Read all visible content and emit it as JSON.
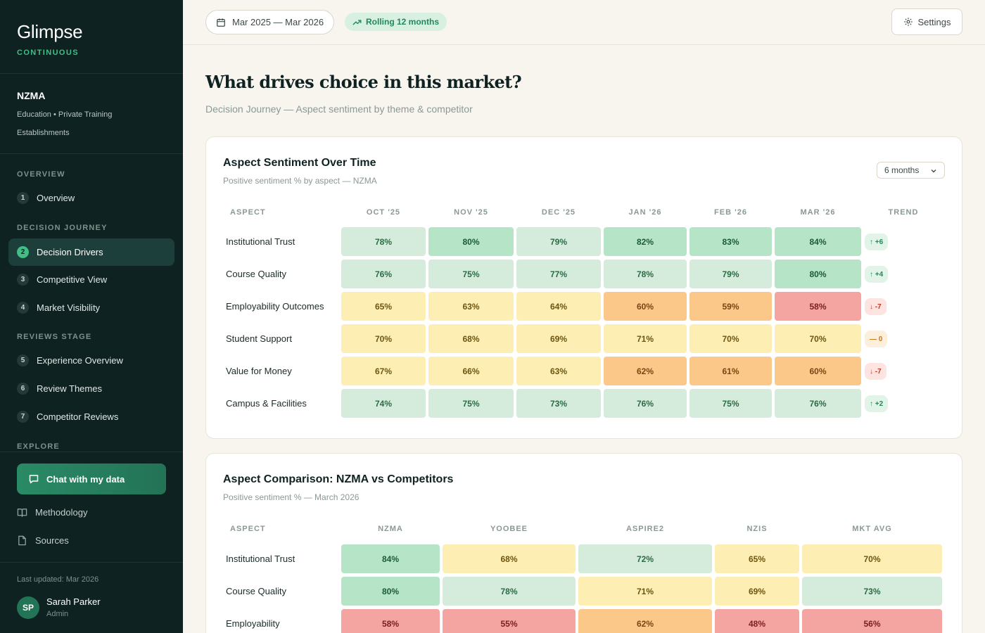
{
  "sidebar": {
    "brand": "Glimpse",
    "brand_sub": "CONTINUOUS",
    "client": {
      "name": "NZMA",
      "description": "Education • Private Training Establishments"
    },
    "sections": [
      {
        "title": "OVERVIEW",
        "items": [
          {
            "num": "1",
            "label": "Overview",
            "active": false
          }
        ]
      },
      {
        "title": "DECISION JOURNEY",
        "items": [
          {
            "num": "2",
            "label": "Decision Drivers",
            "active": true
          },
          {
            "num": "3",
            "label": "Competitive View",
            "active": false
          },
          {
            "num": "4",
            "label": "Market Visibility",
            "active": false
          }
        ]
      },
      {
        "title": "REVIEWS STAGE",
        "items": [
          {
            "num": "5",
            "label": "Experience Overview",
            "active": false
          },
          {
            "num": "6",
            "label": "Review Themes",
            "active": false
          },
          {
            "num": "7",
            "label": "Competitor Reviews",
            "active": false
          }
        ]
      },
      {
        "title": "EXPLORE",
        "items": []
      }
    ],
    "chat_button": "Chat with my data",
    "links": [
      {
        "label": "Methodology",
        "icon": "book-icon"
      },
      {
        "label": "Sources",
        "icon": "file-icon"
      }
    ],
    "last_updated": "Last updated: Mar 2026",
    "user": {
      "initials": "SP",
      "name": "Sarah Parker",
      "role": "Admin"
    }
  },
  "topbar": {
    "date_range": "Mar 2025 — Mar 2026",
    "rolling": "Rolling 12 months",
    "settings": "Settings"
  },
  "page": {
    "title": "What drives choice in this market?",
    "subtitle": "Decision Journey — Aspect sentiment by theme & competitor"
  },
  "colors": {
    "green_strong": "#b6e4c6",
    "green_light": "#d5ecdc",
    "yellow": "#fdefb3",
    "orange": "#fcc889",
    "red": "#f4a5a1",
    "trend_up_bg": "#e2f3e8",
    "trend_down_bg": "#fde4e1",
    "trend_flat_bg": "#fcefdc"
  },
  "over_time": {
    "title": "Aspect Sentiment Over Time",
    "subtitle": "Positive sentiment % by aspect — NZMA",
    "period_select": "6 months",
    "headers": [
      "ASPECT",
      "OCT '25",
      "NOV '25",
      "DEC '25",
      "JAN '26",
      "FEB '26",
      "MAR '26",
      "TREND"
    ],
    "rows": [
      {
        "aspect": "Institutional Trust",
        "values": [
          78,
          80,
          79,
          82,
          83,
          84
        ],
        "labels": [
          "78%",
          "80%",
          "79%",
          "82%",
          "83%",
          "84%"
        ],
        "trend": "↑ +6",
        "trend_dir": "up"
      },
      {
        "aspect": "Course Quality",
        "values": [
          76,
          75,
          77,
          78,
          79,
          80
        ],
        "labels": [
          "76%",
          "75%",
          "77%",
          "78%",
          "79%",
          "80%"
        ],
        "trend": "↑ +4",
        "trend_dir": "up"
      },
      {
        "aspect": "Employability Outcomes",
        "values": [
          65,
          63,
          64,
          60,
          59,
          58
        ],
        "labels": [
          "65%",
          "63%",
          "64%",
          "60%",
          "59%",
          "58%"
        ],
        "trend": "↓ -7",
        "trend_dir": "down"
      },
      {
        "aspect": "Student Support",
        "values": [
          70,
          68,
          69,
          71,
          70,
          70
        ],
        "labels": [
          "70%",
          "68%",
          "69%",
          "71%",
          "70%",
          "70%"
        ],
        "trend": "— 0",
        "trend_dir": "flat"
      },
      {
        "aspect": "Value for Money",
        "values": [
          67,
          66,
          63,
          62,
          61,
          60
        ],
        "labels": [
          "67%",
          "66%",
          "63%",
          "62%",
          "61%",
          "60%"
        ],
        "trend": "↓ -7",
        "trend_dir": "down"
      },
      {
        "aspect": "Campus & Facilities",
        "values": [
          74,
          75,
          73,
          76,
          75,
          76
        ],
        "labels": [
          "74%",
          "75%",
          "73%",
          "76%",
          "75%",
          "76%"
        ],
        "trend": "↑ +2",
        "trend_dir": "up"
      }
    ]
  },
  "comparison": {
    "title": "Aspect Comparison: NZMA vs Competitors",
    "subtitle": "Positive sentiment % — March 2026",
    "headers": [
      "ASPECT",
      "NZMA",
      "YOOBEE",
      "ASPIRE2",
      "NZIS",
      "MKT AVG"
    ],
    "rows": [
      {
        "aspect": "Institutional Trust",
        "values": [
          84,
          68,
          72,
          65,
          70
        ],
        "labels": [
          "84%",
          "68%",
          "72%",
          "65%",
          "70%"
        ]
      },
      {
        "aspect": "Course Quality",
        "values": [
          80,
          78,
          71,
          69,
          73
        ],
        "labels": [
          "80%",
          "78%",
          "71%",
          "69%",
          "73%"
        ]
      },
      {
        "aspect": "Employability",
        "values": [
          58,
          55,
          62,
          48,
          56
        ],
        "labels": [
          "58%",
          "55%",
          "62%",
          "48%",
          "56%"
        ]
      }
    ]
  }
}
